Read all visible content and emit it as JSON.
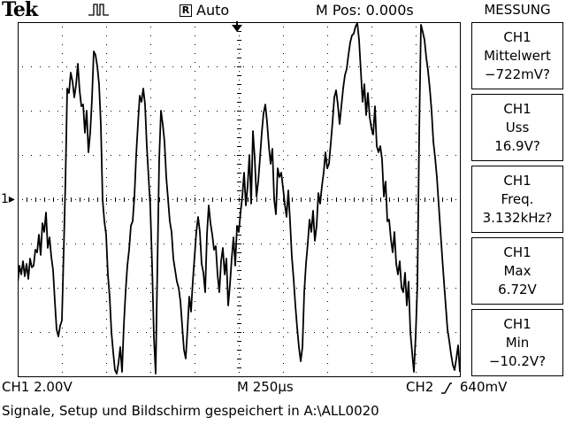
{
  "header": {
    "brand": "Tek",
    "acq_state_icon": "pulse-icon",
    "trigger_badge": "R",
    "trigger_mode": "Auto",
    "m_pos": "M Pos: 0.000s"
  },
  "display": {
    "ch1_marker": "1▸",
    "trace_points": [
      [
        20,
        320
      ],
      [
        22,
        300
      ],
      [
        24,
        310
      ],
      [
        26,
        295
      ],
      [
        28,
        312
      ],
      [
        30,
        298
      ],
      [
        32,
        315
      ],
      [
        34,
        292
      ],
      [
        36,
        302
      ],
      [
        38,
        300
      ],
      [
        40,
        282
      ],
      [
        42,
        285
      ],
      [
        44,
        265
      ],
      [
        46,
        288
      ],
      [
        48,
        252
      ],
      [
        50,
        262
      ],
      [
        52,
        240
      ],
      [
        54,
        280
      ],
      [
        56,
        268
      ],
      [
        58,
        290
      ],
      [
        60,
        305
      ],
      [
        62,
        340
      ],
      [
        64,
        372
      ],
      [
        66,
        380
      ],
      [
        68,
        368
      ],
      [
        70,
        362
      ],
      [
        72,
        285
      ],
      [
        74,
        205
      ],
      [
        76,
        100
      ],
      [
        78,
        105
      ],
      [
        80,
        82
      ],
      [
        82,
        92
      ],
      [
        84,
        110
      ],
      [
        86,
        96
      ],
      [
        88,
        72
      ],
      [
        90,
        102
      ],
      [
        92,
        120
      ],
      [
        94,
        118
      ],
      [
        96,
        150
      ],
      [
        98,
        125
      ],
      [
        100,
        172
      ],
      [
        102,
        150
      ],
      [
        104,
        112
      ],
      [
        106,
        58
      ],
      [
        108,
        62
      ],
      [
        110,
        75
      ],
      [
        112,
        95
      ],
      [
        114,
        140
      ],
      [
        116,
        225
      ],
      [
        118,
        250
      ],
      [
        120,
        265
      ],
      [
        122,
        310
      ],
      [
        124,
        335
      ],
      [
        126,
        375
      ],
      [
        128,
        398
      ],
      [
        130,
        418
      ],
      [
        132,
        422
      ],
      [
        134,
        410
      ],
      [
        136,
        392
      ],
      [
        138,
        420
      ],
      [
        140,
        368
      ],
      [
        142,
        330
      ],
      [
        144,
        300
      ],
      [
        146,
        282
      ],
      [
        148,
        255
      ],
      [
        150,
        250
      ],
      [
        152,
        222
      ],
      [
        154,
        175
      ],
      [
        156,
        140
      ],
      [
        158,
        108
      ],
      [
        160,
        115
      ],
      [
        162,
        100
      ],
      [
        164,
        118
      ],
      [
        166,
        165
      ],
      [
        168,
        200
      ],
      [
        170,
        235
      ],
      [
        172,
        300
      ],
      [
        174,
        380
      ],
      [
        176,
        422
      ],
      [
        178,
        300
      ],
      [
        180,
        180
      ],
      [
        182,
        125
      ],
      [
        184,
        140
      ],
      [
        186,
        160
      ],
      [
        188,
        200
      ],
      [
        190,
        225
      ],
      [
        192,
        250
      ],
      [
        194,
        262
      ],
      [
        196,
        292
      ],
      [
        198,
        305
      ],
      [
        200,
        318
      ],
      [
        202,
        325
      ],
      [
        204,
        340
      ],
      [
        206,
        368
      ],
      [
        208,
        395
      ],
      [
        210,
        405
      ],
      [
        212,
        372
      ],
      [
        214,
        335
      ],
      [
        216,
        352
      ],
      [
        218,
        318
      ],
      [
        220,
        290
      ],
      [
        222,
        262
      ],
      [
        224,
        245
      ],
      [
        226,
        262
      ],
      [
        228,
        298
      ],
      [
        230,
        308
      ],
      [
        232,
        330
      ],
      [
        234,
        265
      ],
      [
        236,
        232
      ],
      [
        238,
        252
      ],
      [
        240,
        265
      ],
      [
        242,
        282
      ],
      [
        244,
        278
      ],
      [
        246,
        310
      ],
      [
        248,
        330
      ],
      [
        250,
        295
      ],
      [
        252,
        280
      ],
      [
        254,
        310
      ],
      [
        256,
        292
      ],
      [
        258,
        345
      ],
      [
        260,
        322
      ],
      [
        262,
        292
      ],
      [
        264,
        268
      ],
      [
        266,
        300
      ],
      [
        268,
        255
      ],
      [
        270,
        262
      ],
      [
        272,
        240
      ],
      [
        274,
        222
      ],
      [
        276,
        195
      ],
      [
        278,
        232
      ],
      [
        280,
        210
      ],
      [
        282,
        175
      ],
      [
        284,
        230
      ],
      [
        286,
        148
      ],
      [
        288,
        178
      ],
      [
        290,
        222
      ],
      [
        292,
        205
      ],
      [
        294,
        178
      ],
      [
        296,
        150
      ],
      [
        298,
        128
      ],
      [
        300,
        118
      ],
      [
        302,
        138
      ],
      [
        304,
        165
      ],
      [
        306,
        185
      ],
      [
        308,
        168
      ],
      [
        310,
        225
      ],
      [
        312,
        242
      ],
      [
        314,
        190
      ],
      [
        316,
        200
      ],
      [
        318,
        195
      ],
      [
        320,
        212
      ],
      [
        322,
        230
      ],
      [
        324,
        245
      ],
      [
        326,
        215
      ],
      [
        328,
        250
      ],
      [
        330,
        290
      ],
      [
        332,
        315
      ],
      [
        334,
        345
      ],
      [
        336,
        370
      ],
      [
        338,
        392
      ],
      [
        340,
        408
      ],
      [
        342,
        392
      ],
      [
        344,
        330
      ],
      [
        346,
        298
      ],
      [
        348,
        275
      ],
      [
        350,
        248
      ],
      [
        352,
        262
      ],
      [
        354,
        238
      ],
      [
        356,
        272
      ],
      [
        358,
        255
      ],
      [
        360,
        218
      ],
      [
        362,
        230
      ],
      [
        364,
        210
      ],
      [
        366,
        195
      ],
      [
        368,
        172
      ],
      [
        370,
        190
      ],
      [
        372,
        185
      ],
      [
        374,
        162
      ],
      [
        376,
        138
      ],
      [
        378,
        110
      ],
      [
        380,
        102
      ],
      [
        382,
        118
      ],
      [
        384,
        140
      ],
      [
        386,
        120
      ],
      [
        388,
        100
      ],
      [
        390,
        85
      ],
      [
        392,
        78
      ],
      [
        394,
        62
      ],
      [
        396,
        48
      ],
      [
        398,
        40
      ],
      [
        400,
        38
      ],
      [
        402,
        30
      ],
      [
        404,
        26
      ],
      [
        406,
        45
      ],
      [
        408,
        80
      ],
      [
        410,
        115
      ],
      [
        412,
        95
      ],
      [
        414,
        130
      ],
      [
        416,
        105
      ],
      [
        418,
        132
      ],
      [
        420,
        145
      ],
      [
        422,
        152
      ],
      [
        424,
        120
      ],
      [
        426,
        165
      ],
      [
        428,
        172
      ],
      [
        430,
        165
      ],
      [
        432,
        180
      ],
      [
        434,
        222
      ],
      [
        436,
        205
      ],
      [
        438,
        250
      ],
      [
        440,
        248
      ],
      [
        442,
        270
      ],
      [
        444,
        285
      ],
      [
        446,
        262
      ],
      [
        448,
        298
      ],
      [
        450,
        310
      ],
      [
        452,
        295
      ],
      [
        454,
        325
      ],
      [
        456,
        330
      ],
      [
        458,
        308
      ],
      [
        460,
        345
      ],
      [
        462,
        318
      ],
      [
        464,
        375
      ],
      [
        466,
        398
      ],
      [
        468,
        420
      ],
      [
        470,
        380
      ],
      [
        472,
        320
      ],
      [
        474,
        150
      ],
      [
        476,
        28
      ],
      [
        478,
        36
      ],
      [
        480,
        45
      ],
      [
        482,
        65
      ],
      [
        484,
        80
      ],
      [
        486,
        100
      ],
      [
        488,
        125
      ],
      [
        490,
        160
      ],
      [
        492,
        178
      ],
      [
        494,
        200
      ],
      [
        496,
        230
      ],
      [
        498,
        260
      ],
      [
        500,
        290
      ],
      [
        502,
        318
      ],
      [
        504,
        345
      ],
      [
        506,
        372
      ],
      [
        508,
        385
      ],
      [
        510,
        400
      ],
      [
        512,
        412
      ],
      [
        514,
        418
      ],
      [
        516,
        405
      ],
      [
        518,
        390
      ],
      [
        520,
        420
      ]
    ]
  },
  "measurements": {
    "title": "MESSUNG",
    "items": [
      {
        "channel": "CH1",
        "name": "Mittelwert",
        "value": "−722mV?"
      },
      {
        "channel": "CH1",
        "name": "Uss",
        "value": "16.9V?"
      },
      {
        "channel": "CH1",
        "name": "Freq.",
        "value": "3.132kHz?"
      },
      {
        "channel": "CH1",
        "name": "Max",
        "value": "6.72V"
      },
      {
        "channel": "CH1",
        "name": "Min",
        "value": "−10.2V?"
      }
    ]
  },
  "status": {
    "ch1_scale": "CH1  2.00V",
    "timebase": "M 250μs",
    "trigger_source": "CH2",
    "trigger_level": "640mV"
  },
  "message": "Signale, Setup und Bildschirm gespeichert in A:\\ALL0020"
}
